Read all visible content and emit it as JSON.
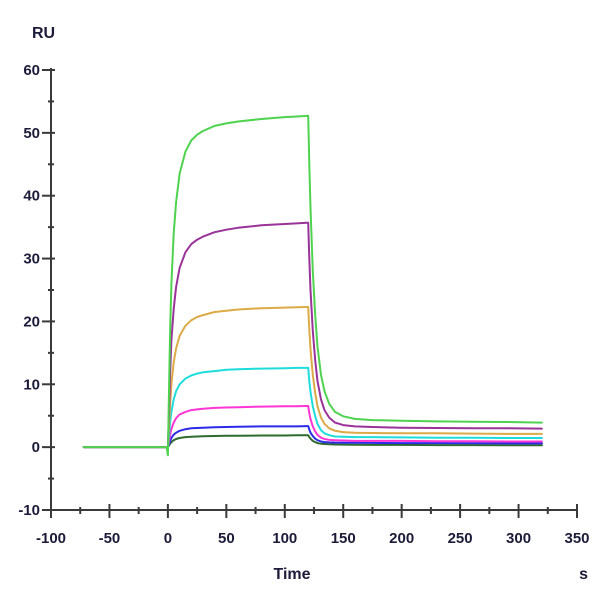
{
  "page": {
    "background_color": "#ffffff"
  },
  "chart_data": {
    "type": "line",
    "title": "",
    "ylabel": "RU",
    "xlabel": "Time",
    "x_unit": "s",
    "xlim": [
      -100,
      350
    ],
    "ylim": [
      -10,
      60
    ],
    "x_ticks": [
      -100,
      -50,
      0,
      50,
      100,
      150,
      200,
      250,
      300,
      350
    ],
    "y_ticks": [
      -10,
      0,
      10,
      20,
      30,
      40,
      50,
      60
    ],
    "x_minor_step": 25,
    "y_minor_step": 5,
    "grid": false,
    "legend": "none",
    "axis_color": "#3a3a3a",
    "label_color": "#1c1c3a",
    "association_start_s": 0,
    "association_end_s": 120,
    "trace_end_s": 320,
    "series": [
      {
        "name": "green",
        "color": "#4fd34f",
        "plateau_ru": 52.7,
        "points": [
          [
            -72,
            0
          ],
          [
            -40,
            0
          ],
          [
            -10,
            0
          ],
          [
            -1,
            0
          ],
          [
            0,
            -1.3
          ],
          [
            1,
            10
          ],
          [
            2,
            19
          ],
          [
            3,
            26
          ],
          [
            5,
            34
          ],
          [
            7,
            39
          ],
          [
            10,
            43.5
          ],
          [
            15,
            47
          ],
          [
            20,
            48.8
          ],
          [
            25,
            49.7
          ],
          [
            30,
            50.3
          ],
          [
            40,
            51.1
          ],
          [
            50,
            51.5
          ],
          [
            60,
            51.8
          ],
          [
            80,
            52.2
          ],
          [
            100,
            52.5
          ],
          [
            110,
            52.6
          ],
          [
            119,
            52.7
          ],
          [
            120,
            52.7
          ],
          [
            121,
            45
          ],
          [
            122,
            38
          ],
          [
            124,
            28
          ],
          [
            126,
            21
          ],
          [
            128,
            16
          ],
          [
            131,
            11.5
          ],
          [
            134,
            8.9
          ],
          [
            138,
            6.9
          ],
          [
            143,
            5.6
          ],
          [
            150,
            4.9
          ],
          [
            160,
            4.5
          ],
          [
            175,
            4.3
          ],
          [
            200,
            4.2
          ],
          [
            230,
            4.1
          ],
          [
            260,
            4.05
          ],
          [
            290,
            4.0
          ],
          [
            320,
            3.9
          ]
        ]
      },
      {
        "name": "purple",
        "color": "#993399",
        "plateau_ru": 35.7,
        "points": [
          [
            -72,
            0
          ],
          [
            -40,
            0
          ],
          [
            -10,
            0
          ],
          [
            -1,
            0
          ],
          [
            0,
            0
          ],
          [
            1,
            6
          ],
          [
            2,
            12
          ],
          [
            3,
            17
          ],
          [
            5,
            22
          ],
          [
            7,
            25.5
          ],
          [
            10,
            28.5
          ],
          [
            15,
            31
          ],
          [
            20,
            32.3
          ],
          [
            25,
            33
          ],
          [
            30,
            33.5
          ],
          [
            40,
            34.2
          ],
          [
            50,
            34.6
          ],
          [
            60,
            34.9
          ],
          [
            80,
            35.3
          ],
          [
            100,
            35.5
          ],
          [
            110,
            35.6
          ],
          [
            119,
            35.7
          ],
          [
            120,
            35.7
          ],
          [
            121,
            30
          ],
          [
            122,
            25
          ],
          [
            124,
            18.5
          ],
          [
            126,
            13.8
          ],
          [
            128,
            10.5
          ],
          [
            131,
            7.6
          ],
          [
            134,
            5.9
          ],
          [
            138,
            4.7
          ],
          [
            143,
            3.9
          ],
          [
            150,
            3.5
          ],
          [
            160,
            3.3
          ],
          [
            175,
            3.2
          ],
          [
            200,
            3.1
          ],
          [
            230,
            3.05
          ],
          [
            260,
            3.0
          ],
          [
            290,
            3.0
          ],
          [
            320,
            2.95
          ]
        ]
      },
      {
        "name": "gold",
        "color": "#dcaa46",
        "plateau_ru": 22.3,
        "points": [
          [
            -72,
            0
          ],
          [
            -40,
            0
          ],
          [
            -10,
            0
          ],
          [
            -1,
            0
          ],
          [
            0,
            0
          ],
          [
            1,
            3.5
          ],
          [
            2,
            7
          ],
          [
            3,
            10
          ],
          [
            5,
            13.5
          ],
          [
            7,
            15.7
          ],
          [
            10,
            17.7
          ],
          [
            15,
            19.3
          ],
          [
            20,
            20.2
          ],
          [
            25,
            20.7
          ],
          [
            30,
            21.0
          ],
          [
            40,
            21.5
          ],
          [
            50,
            21.7
          ],
          [
            60,
            21.9
          ],
          [
            80,
            22.1
          ],
          [
            100,
            22.2
          ],
          [
            110,
            22.25
          ],
          [
            119,
            22.3
          ],
          [
            120,
            22.3
          ],
          [
            121,
            18.7
          ],
          [
            122,
            15.6
          ],
          [
            124,
            11.5
          ],
          [
            126,
            8.6
          ],
          [
            128,
            6.5
          ],
          [
            131,
            4.7
          ],
          [
            134,
            3.7
          ],
          [
            138,
            3.0
          ],
          [
            143,
            2.6
          ],
          [
            150,
            2.4
          ],
          [
            160,
            2.3
          ],
          [
            175,
            2.25
          ],
          [
            200,
            2.2
          ],
          [
            230,
            2.2
          ],
          [
            260,
            2.15
          ],
          [
            290,
            2.1
          ],
          [
            320,
            2.1
          ]
        ]
      },
      {
        "name": "cyan",
        "color": "#1edcdc",
        "plateau_ru": 12.6,
        "points": [
          [
            -72,
            0
          ],
          [
            -40,
            0
          ],
          [
            -10,
            0
          ],
          [
            -1,
            0
          ],
          [
            0,
            0
          ],
          [
            1,
            2
          ],
          [
            2,
            4
          ],
          [
            3,
            5.6
          ],
          [
            5,
            7.6
          ],
          [
            7,
            8.9
          ],
          [
            10,
            10
          ],
          [
            15,
            10.9
          ],
          [
            20,
            11.4
          ],
          [
            25,
            11.7
          ],
          [
            30,
            11.9
          ],
          [
            40,
            12.1
          ],
          [
            50,
            12.3
          ],
          [
            60,
            12.4
          ],
          [
            80,
            12.5
          ],
          [
            100,
            12.55
          ],
          [
            110,
            12.6
          ],
          [
            119,
            12.6
          ],
          [
            120,
            12.6
          ],
          [
            121,
            10.5
          ],
          [
            122,
            8.8
          ],
          [
            124,
            6.5
          ],
          [
            126,
            4.9
          ],
          [
            128,
            3.7
          ],
          [
            131,
            2.7
          ],
          [
            134,
            2.2
          ],
          [
            138,
            1.9
          ],
          [
            143,
            1.7
          ],
          [
            150,
            1.65
          ],
          [
            160,
            1.6
          ],
          [
            175,
            1.6
          ],
          [
            200,
            1.55
          ],
          [
            230,
            1.5
          ],
          [
            260,
            1.5
          ],
          [
            290,
            1.45
          ],
          [
            320,
            1.45
          ]
        ]
      },
      {
        "name": "magenta",
        "color": "#ff35d6",
        "plateau_ru": 6.55,
        "points": [
          [
            -72,
            0
          ],
          [
            -40,
            0
          ],
          [
            -10,
            0
          ],
          [
            -1,
            0
          ],
          [
            0,
            0
          ],
          [
            1,
            1
          ],
          [
            2,
            2
          ],
          [
            3,
            2.9
          ],
          [
            5,
            3.9
          ],
          [
            7,
            4.6
          ],
          [
            10,
            5.2
          ],
          [
            15,
            5.6
          ],
          [
            20,
            5.9
          ],
          [
            25,
            6.0
          ],
          [
            30,
            6.1
          ],
          [
            40,
            6.25
          ],
          [
            50,
            6.3
          ],
          [
            60,
            6.35
          ],
          [
            80,
            6.45
          ],
          [
            100,
            6.5
          ],
          [
            110,
            6.5
          ],
          [
            119,
            6.55
          ],
          [
            120,
            6.55
          ],
          [
            121,
            5.4
          ],
          [
            122,
            4.5
          ],
          [
            124,
            3.3
          ],
          [
            126,
            2.5
          ],
          [
            128,
            1.95
          ],
          [
            131,
            1.5
          ],
          [
            134,
            1.3
          ],
          [
            138,
            1.15
          ],
          [
            143,
            1.1
          ],
          [
            150,
            1.05
          ],
          [
            160,
            1.0
          ],
          [
            175,
            1.0
          ],
          [
            200,
            1.0
          ],
          [
            230,
            0.95
          ],
          [
            260,
            0.95
          ],
          [
            290,
            0.9
          ],
          [
            320,
            0.9
          ]
        ]
      },
      {
        "name": "blue",
        "color": "#2a2ae8",
        "plateau_ru": 3.35,
        "points": [
          [
            -72,
            0
          ],
          [
            -40,
            0
          ],
          [
            -10,
            0
          ],
          [
            -1,
            0
          ],
          [
            0,
            0
          ],
          [
            1,
            0.5
          ],
          [
            2,
            1.0
          ],
          [
            3,
            1.45
          ],
          [
            5,
            2.0
          ],
          [
            7,
            2.3
          ],
          [
            10,
            2.6
          ],
          [
            15,
            2.85
          ],
          [
            20,
            3.0
          ],
          [
            25,
            3.05
          ],
          [
            30,
            3.1
          ],
          [
            40,
            3.15
          ],
          [
            50,
            3.2
          ],
          [
            60,
            3.25
          ],
          [
            80,
            3.3
          ],
          [
            100,
            3.3
          ],
          [
            110,
            3.3
          ],
          [
            119,
            3.35
          ],
          [
            120,
            3.35
          ],
          [
            121,
            2.8
          ],
          [
            122,
            2.3
          ],
          [
            124,
            1.75
          ],
          [
            126,
            1.35
          ],
          [
            128,
            1.1
          ],
          [
            131,
            0.9
          ],
          [
            134,
            0.8
          ],
          [
            138,
            0.75
          ],
          [
            143,
            0.72
          ],
          [
            150,
            0.7
          ],
          [
            160,
            0.7
          ],
          [
            175,
            0.68
          ],
          [
            200,
            0.65
          ],
          [
            230,
            0.65
          ],
          [
            260,
            0.62
          ],
          [
            290,
            0.6
          ],
          [
            320,
            0.6
          ]
        ]
      },
      {
        "name": "dark-green",
        "color": "#2e6b2e",
        "plateau_ru": 1.9,
        "points": [
          [
            -72,
            0
          ],
          [
            -40,
            0
          ],
          [
            -10,
            0
          ],
          [
            -1,
            0
          ],
          [
            0,
            0
          ],
          [
            1,
            0.3
          ],
          [
            2,
            0.55
          ],
          [
            3,
            0.8
          ],
          [
            5,
            1.1
          ],
          [
            7,
            1.3
          ],
          [
            10,
            1.45
          ],
          [
            15,
            1.6
          ],
          [
            20,
            1.65
          ],
          [
            25,
            1.7
          ],
          [
            30,
            1.72
          ],
          [
            40,
            1.78
          ],
          [
            50,
            1.8
          ],
          [
            60,
            1.8
          ],
          [
            80,
            1.85
          ],
          [
            100,
            1.85
          ],
          [
            110,
            1.88
          ],
          [
            119,
            1.9
          ],
          [
            120,
            1.9
          ],
          [
            121,
            1.6
          ],
          [
            122,
            1.35
          ],
          [
            124,
            1.0
          ],
          [
            126,
            0.8
          ],
          [
            128,
            0.65
          ],
          [
            131,
            0.55
          ],
          [
            134,
            0.5
          ],
          [
            138,
            0.45
          ],
          [
            143,
            0.42
          ],
          [
            150,
            0.4
          ],
          [
            160,
            0.38
          ],
          [
            175,
            0.36
          ],
          [
            200,
            0.35
          ],
          [
            230,
            0.33
          ],
          [
            260,
            0.32
          ],
          [
            290,
            0.3
          ],
          [
            320,
            0.3
          ]
        ]
      }
    ]
  }
}
